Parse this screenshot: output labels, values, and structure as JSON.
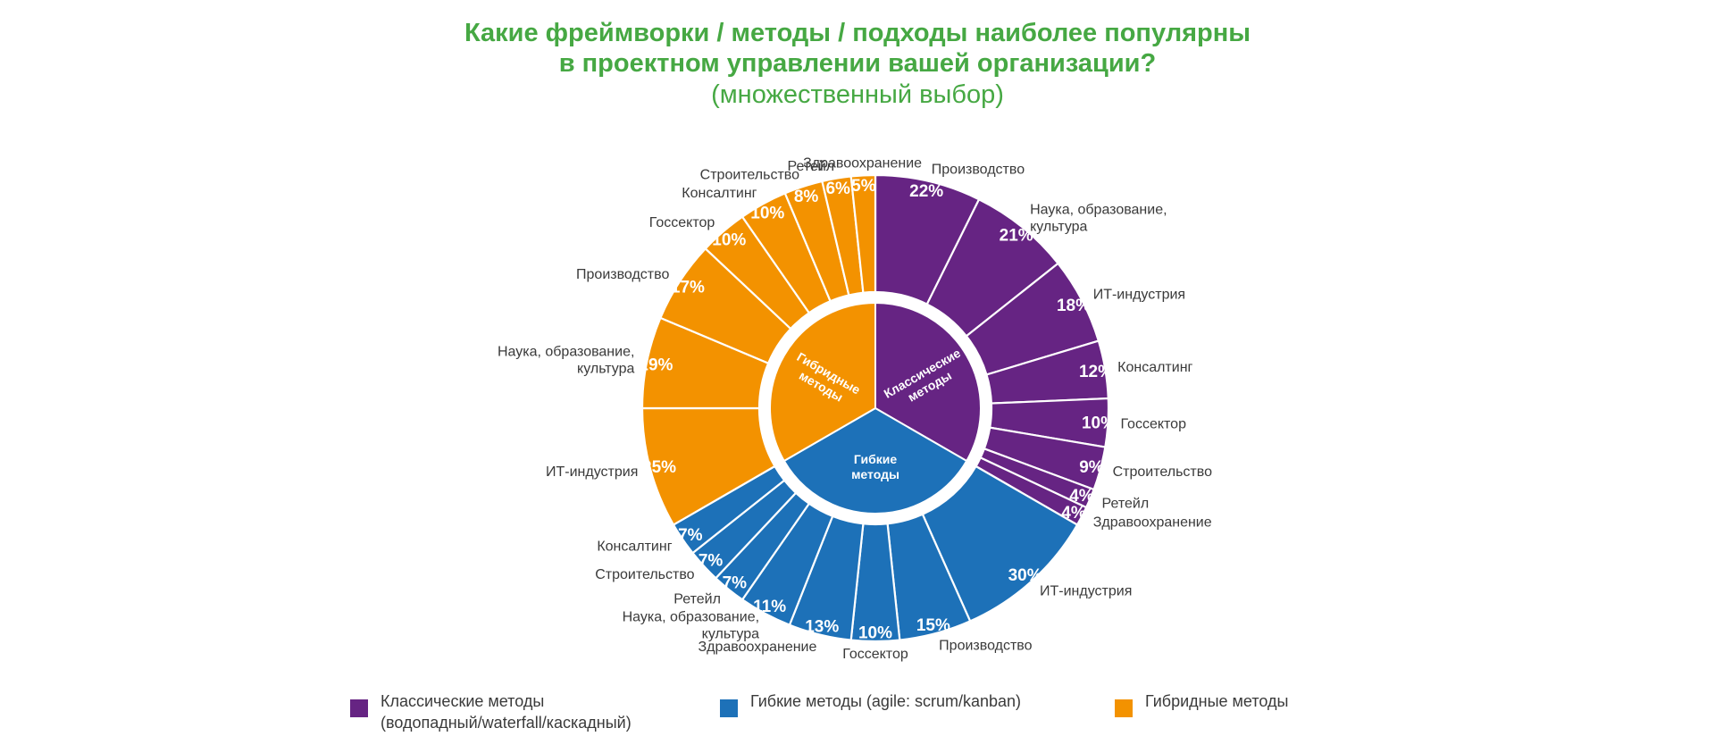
{
  "chart_data": {
    "type": "sunburst",
    "title_lines": [
      "Какие фреймворки / методы / подходы наиболее популярны",
      "в проектном управлении вашей организации?"
    ],
    "subtitle": "(множественный выбор)",
    "colors": {
      "classic": "#662483",
      "agile": "#1D71B8",
      "hybrid": "#F39200",
      "title": "#46A843"
    },
    "groups": [
      {
        "key": "classic",
        "name": "Классические методы",
        "inner_label_lines": [
          "Классические",
          "методы"
        ],
        "share": 0.3333,
        "segments": [
          {
            "label": "Производство",
            "value": 22,
            "value_label": "22%"
          },
          {
            "label": "Наука, образование, культура",
            "value": 21,
            "value_label": "21%"
          },
          {
            "label": "ИТ-индустрия",
            "value": 18,
            "value_label": "18%"
          },
          {
            "label": "Консалтинг",
            "value": 12,
            "value_label": "12%"
          },
          {
            "label": "Госсектор",
            "value": 10,
            "value_label": "10%"
          },
          {
            "label": "Строительство",
            "value": 9,
            "value_label": "9%"
          },
          {
            "label": "Ретейл",
            "value": 4,
            "value_label": "4%"
          },
          {
            "label": "Здравоохранение",
            "value": 4,
            "value_label": "4%"
          }
        ]
      },
      {
        "key": "agile",
        "name": "Гибкие методы",
        "inner_label_lines": [
          "Гибкие",
          "методы"
        ],
        "share": 0.3333,
        "segments": [
          {
            "label": "ИТ-индустрия",
            "value": 30,
            "value_label": "30%"
          },
          {
            "label": "Производство",
            "value": 15,
            "value_label": "15%"
          },
          {
            "label": "Госсектор",
            "value": 10,
            "value_label": "10%"
          },
          {
            "label": "Здравоохранение",
            "value": 13,
            "value_label": "13%"
          },
          {
            "label": "Наука, образование, культура",
            "value": 11,
            "value_label": "11%"
          },
          {
            "label": "Ретейл",
            "value": 7,
            "value_label": "7%"
          },
          {
            "label": "Строительство",
            "value": 7,
            "value_label": "7%"
          },
          {
            "label": "Консалтинг",
            "value": 7,
            "value_label": "7%"
          }
        ]
      },
      {
        "key": "hybrid",
        "name": "Гибридные методы",
        "inner_label_lines": [
          "Гибридные",
          "методы"
        ],
        "share": 0.3333,
        "segments": [
          {
            "label": "ИТ-индустрия",
            "value": 25,
            "value_label": "25%"
          },
          {
            "label": "Наука, образование, культура",
            "value": 19,
            "value_label": "19%"
          },
          {
            "label": "Производство",
            "value": 17,
            "value_label": "17%"
          },
          {
            "label": "Госсектор",
            "value": 10,
            "value_label": "10%"
          },
          {
            "label": "Консалтинг",
            "value": 10,
            "value_label": "10%"
          },
          {
            "label": "Строительство",
            "value": 8,
            "value_label": "8%"
          },
          {
            "label": "Ретейл",
            "value": 6,
            "value_label": "6%"
          },
          {
            "label": "Здравоохранение",
            "value": 5,
            "value_label": "5%"
          }
        ]
      }
    ],
    "legend": [
      {
        "key": "classic",
        "lines": [
          "Классические методы",
          "(водопадный/waterfall/каскадный)"
        ]
      },
      {
        "key": "agile",
        "lines": [
          "Гибкие методы (agile: scrum/kanban)"
        ]
      },
      {
        "key": "hybrid",
        "lines": [
          "Гибридные методы"
        ]
      }
    ],
    "legend_placement": "bottom"
  }
}
